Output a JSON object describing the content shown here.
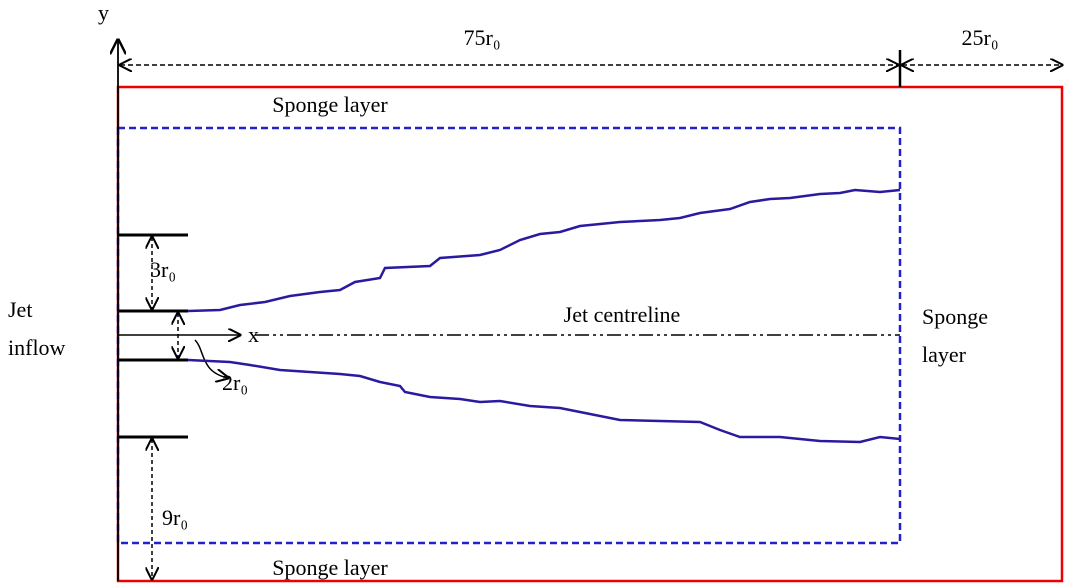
{
  "axis_labels": {
    "y": "y",
    "x": "x"
  },
  "dimensions": {
    "domain_length": "75r₀",
    "sponge_length": "25r₀",
    "nozzle_gap": "3r₀",
    "jet_diameter": "2r₀",
    "lower_gap": "9r₀"
  },
  "regions": {
    "top_sponge": "Sponge layer",
    "bottom_sponge": "Sponge layer",
    "right_sponge": [
      "Sponge",
      "layer"
    ],
    "inflow": [
      "Jet",
      "inflow"
    ],
    "centreline": "Jet centreline"
  }
}
